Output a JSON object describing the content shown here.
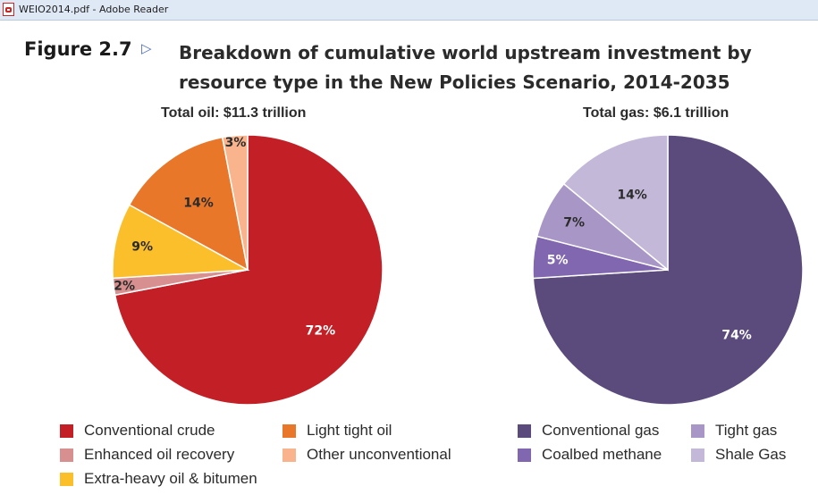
{
  "window": {
    "title": "WEIO2014.pdf - Adobe Reader"
  },
  "figure": {
    "label": "Figure 2.7",
    "title": "Breakdown of cumulative world upstream investment by resource type in the New Policies Scenario, 2014-2035"
  },
  "colors": {
    "conventional_crude": "#c22026",
    "enhanced_oil_recovery": "#d88f8f",
    "extra_heavy": "#fcbf2c",
    "light_tight_oil": "#e8772a",
    "other_unconventional": "#f9b48d",
    "conventional_gas": "#5b4a7c",
    "coalbed_methane": "#8167b0",
    "tight_gas": "#a896c6",
    "shale_gas": "#c3b8d7"
  },
  "chart_data": [
    {
      "type": "pie",
      "title": "Total oil:  $11.3 trillion",
      "slices": [
        {
          "label": "Conventional crude",
          "value": 72,
          "display": "72%"
        },
        {
          "label": "Enhanced oil recovery",
          "value": 2,
          "display": "2%"
        },
        {
          "label": "Extra-heavy oil & bitumen",
          "value": 9,
          "display": "9%"
        },
        {
          "label": "Light tight oil",
          "value": 14,
          "display": "14%"
        },
        {
          "label": "Other unconventional",
          "value": 3,
          "display": "3%"
        }
      ]
    },
    {
      "type": "pie",
      "title": "Total gas:  $6.1 trillion",
      "slices": [
        {
          "label": "Conventional gas",
          "value": 74,
          "display": "74%"
        },
        {
          "label": "Coalbed methane",
          "value": 5,
          "display": "5%"
        },
        {
          "label": "Tight gas",
          "value": 7,
          "display": "7%"
        },
        {
          "label": "Shale Gas",
          "value": 14,
          "display": "14%"
        }
      ]
    }
  ],
  "legend": {
    "oil": [
      "Conventional crude",
      "Light tight oil",
      "Enhanced oil recovery",
      "Other unconventional",
      "Extra-heavy oil & bitumen"
    ],
    "gas": [
      "Conventional gas",
      "Tight gas",
      "Coalbed methane",
      "Shale Gas"
    ]
  }
}
